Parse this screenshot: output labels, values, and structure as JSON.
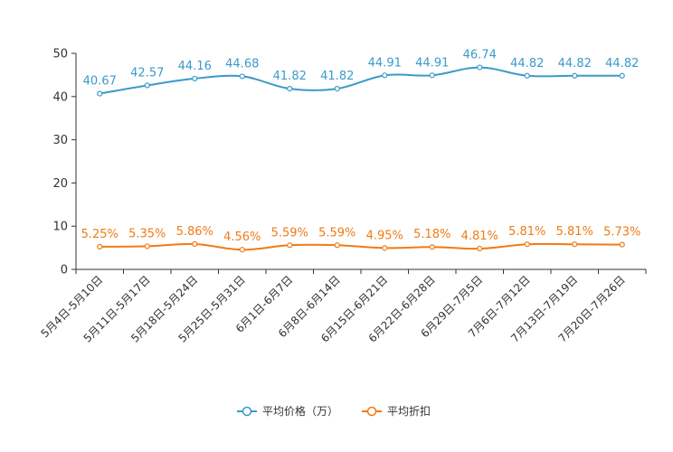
{
  "chart_data": {
    "type": "line",
    "categories": [
      "5月4日-5月10日",
      "5月11日-5月17日",
      "5月18日-5月24日",
      "5月25日-5月31日",
      "6月1日-6月7日",
      "6月8日-6月14日",
      "6月15日-6月21日",
      "6月22日-6月28日",
      "6月29日-7月5日",
      "7月6日-7月12日",
      "7月13日-7月19日",
      "7月20日-7月26日"
    ],
    "ylim": [
      0,
      50
    ],
    "yticks": [
      "0",
      "10",
      "20",
      "30",
      "40",
      "50"
    ],
    "series": [
      {
        "name": "平均价格（万）",
        "color": "#3a9ac9",
        "values": [
          40.67,
          42.57,
          44.16,
          44.68,
          41.82,
          41.82,
          44.91,
          44.91,
          46.74,
          44.82,
          44.82,
          44.82
        ],
        "labels": [
          "40.67",
          "42.57",
          "44.16",
          "44.68",
          "41.82",
          "41.82",
          "44.91",
          "44.91",
          "46.74",
          "44.82",
          "44.82",
          "44.82"
        ]
      },
      {
        "name": "平均折扣",
        "color": "#f07b14",
        "values": [
          5.25,
          5.35,
          5.86,
          4.56,
          5.59,
          5.59,
          4.95,
          5.18,
          4.81,
          5.81,
          5.81,
          5.73
        ],
        "labels": [
          "5.25%",
          "5.35%",
          "5.86%",
          "4.56%",
          "5.59%",
          "5.59%",
          "4.95%",
          "5.18%",
          "4.81%",
          "5.81%",
          "5.81%",
          "5.73%"
        ]
      }
    ],
    "legend": [
      "平均价格（万）",
      "平均折扣"
    ],
    "legend_position": "bottom-center",
    "grid": false
  }
}
